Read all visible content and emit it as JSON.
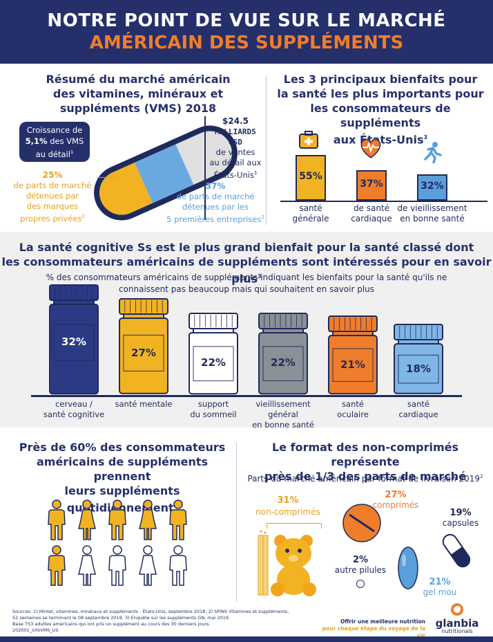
{
  "header": {
    "line1": "NOTRE POINT DE VUE SUR LE MARCHÉ",
    "line2": "AMÉRICAIN DES SUPPLÉMENTS"
  },
  "summary": {
    "title_l1": "Résumé du marché américain",
    "title_l2": "des vitamines, minéraux et",
    "title_l3": "suppléments (VMS) 2018",
    "growth_l1": "Croissance de",
    "growth_pct": "5,1%",
    "growth_l2": " des VMS",
    "growth_l3": "au détail",
    "growth_sup": "1",
    "sales_value": "$24.5",
    "sales_unit_l1": "MILLIARDS",
    "sales_unit_l2": "USD",
    "sales_l1": "de ventes",
    "sales_l2": "au détail aux",
    "sales_l3": "États-Unis",
    "sales_sup": "1",
    "private_pct": "25%",
    "private_l1": "de parts de marché",
    "private_l2": "détenues par",
    "private_l3": "des marques",
    "private_l4": "propres privées",
    "private_sup": "2",
    "top5_pct": "37%",
    "top5_l1": "de parts de marché",
    "top5_l2": "détenues par les",
    "top5_l3": "5 premières entreprises",
    "top5_sup": "2"
  },
  "top_benefits": {
    "title_l1": "Les 3 principaux bienfaits pour",
    "title_l2": "la santé les plus importants pour",
    "title_l3": "les consommateurs de suppléments",
    "title_l4": "aux États-Unis",
    "title_sup": "3",
    "items": [
      {
        "value": "55%",
        "pct": 55,
        "label_l1": "santé",
        "label_l2": "générale",
        "color": "#f2b322",
        "icon": "first-aid-kit-icon"
      },
      {
        "value": "37%",
        "pct": 37,
        "label_l1": "de santé",
        "label_l2": "cardiaque",
        "color": "#ef7d2a",
        "icon": "heart-pulse-icon"
      },
      {
        "value": "32%",
        "pct": 32,
        "label_l1": "de vieillissement",
        "label_l2": "en bonne santé",
        "color": "#5a9fda",
        "icon": "running-person-icon"
      }
    ]
  },
  "cognitive": {
    "title_l1": "La santé cognitive Ss est le plus grand bienfait pour la santé classé dont",
    "title_l2": "les consommateurs américains de suppléments sont intéressés pour en savoir plus",
    "title_sup": "3",
    "sub_l1": "% des consommateurs américains de suppléments indiquant les bienfaits pour la santé qu'ils ne",
    "sub_l2": "connaissent pas beaucoup mais qui souhaitent en savoir plus",
    "bottles": [
      {
        "value": "32%",
        "pct": 32,
        "label_l1": "cerveau /",
        "label_l2": "santé cognitive",
        "label_l3": "",
        "color": "#2c3a86",
        "text_color": "#ffffff"
      },
      {
        "value": "27%",
        "pct": 27,
        "label_l1": "santé mentale",
        "label_l2": "",
        "label_l3": "",
        "color": "#f2b322",
        "text_color": "#1f2a5c"
      },
      {
        "value": "22%",
        "pct": 22,
        "label_l1": "support",
        "label_l2": "du sommeil",
        "label_l3": "",
        "color": "#ffffff",
        "text_color": "#1f2a5c"
      },
      {
        "value": "22%",
        "pct": 22,
        "label_l1": "vieillissement",
        "label_l2": "général",
        "label_l3": "en bonne santé",
        "color": "#8a9095",
        "text_color": "#1f2a5c"
      },
      {
        "value": "21%",
        "pct": 21,
        "label_l1": "santé",
        "label_l2": "oculaire",
        "label_l3": "",
        "color": "#ef7d2a",
        "text_color": "#1f2a5c"
      },
      {
        "value": "18%",
        "pct": 18,
        "label_l1": "santé",
        "label_l2": "cardiaque",
        "label_l3": "",
        "color": "#7fb6e6",
        "text_color": "#1f2a5c"
      }
    ]
  },
  "daily": {
    "title_l1": "Près de 60% des consommateurs",
    "title_l2": "américains de suppléments prennent",
    "title_l3": "leurs suppléments quotidiennement",
    "title_sup": "3",
    "filled_fraction": 0.6
  },
  "formats": {
    "title_l1": "Le format des non-comprimés représente",
    "title_l2": "près de 1/3 des parts de marché",
    "sub": "Parts du marché américain par format de livraison 2019",
    "sub_sup": "2",
    "noncomp_pct": "31%",
    "noncomp_label": "non-comprimés",
    "comp_pct": "27%",
    "comp_label": "comprimés",
    "caps_pct": "19%",
    "caps_label": "capsules",
    "other_pct": "2%",
    "other_label": "autre pilules",
    "gel_pct": "21%",
    "gel_label": "gel mou"
  },
  "footer": {
    "sources_l1": "Sources: 1) Mintel, vitamines, minéraux et suppléments - États-Unis, septembre 2018, 2) SPINS Vitamines et suppléments,",
    "sources_l2": "52 semaines se terminant le 08 septembre 2019, 3) Enquête sur les suppléments GN, mai 2019.",
    "sources_l3": "Base 753 adultes américains qui ont pris un supplément au cours des 30 derniers jours.",
    "code": "202001_infoVMS_US",
    "tagline_l1": "Offrir une meilleure nutrition",
    "tagline_l2": "pour chaque étape du voyage de la vie",
    "brand": "glanbia",
    "brand_sub": "nutritionals"
  },
  "colors": {
    "navy": "#25306b",
    "orange": "#ef7d2a",
    "yellow": "#f2b322",
    "blue": "#5a9fda"
  }
}
